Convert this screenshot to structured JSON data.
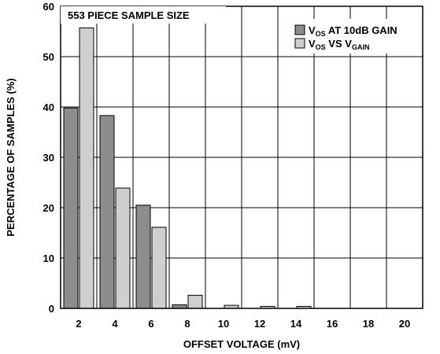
{
  "chart_data": {
    "type": "bar",
    "annotation": "553 PIECE SAMPLE SIZE",
    "xlabel": "OFFSET VOLTAGE (mV)",
    "ylabel": "PERCENTAGE OF SAMPLES (%)",
    "categories": [
      "2",
      "4",
      "6",
      "8",
      "10",
      "12",
      "14",
      "16",
      "18",
      "20"
    ],
    "ylim": [
      0,
      60
    ],
    "yticks": [
      0,
      10,
      20,
      30,
      40,
      50,
      60
    ],
    "grid": true,
    "legend_position": "top-right",
    "series": [
      {
        "name": "VOS AT 10dB GAIN",
        "legend": {
          "a": "V",
          "b": "OS",
          "c": " AT 10dB GAIN"
        },
        "color": "#8c8c8c",
        "values": [
          39.8,
          38.3,
          20.5,
          0.7,
          0,
          0,
          0,
          0,
          0,
          0
        ]
      },
      {
        "name": "VOS VS VGAIN",
        "legend": {
          "a": "V",
          "b": "OS",
          "c": " VS V",
          "d": "GAIN"
        },
        "color": "#cfcfcf",
        "values": [
          55.7,
          23.9,
          16.1,
          2.6,
          0.6,
          0.4,
          0.4,
          0,
          0,
          0
        ]
      }
    ]
  }
}
